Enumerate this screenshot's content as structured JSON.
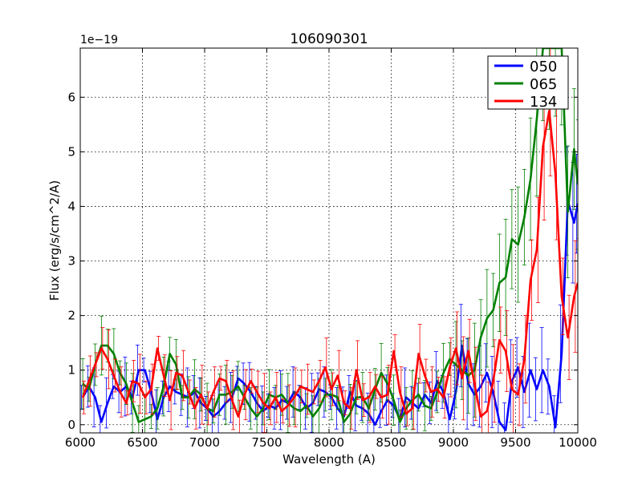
{
  "chart_data": {
    "type": "line",
    "title": "106090301",
    "xlabel": "Wavelength (A)",
    "ylabel": "Flux (erg/s/cm^2/A)",
    "offset_label": "1e−19",
    "xlim": [
      6000,
      10000
    ],
    "ylim": [
      -0.15,
      6.9
    ],
    "grid": true,
    "legend_position": "top-right",
    "x_ticks": [
      6000,
      6500,
      7000,
      7500,
      8000,
      8500,
      9000,
      9500,
      10000
    ],
    "x_tick_labels": [
      "6000",
      "6500",
      "7000",
      "7500",
      "8000",
      "8500",
      "9000",
      "9500",
      "10000"
    ],
    "y_ticks": [
      0,
      1,
      2,
      3,
      4,
      5,
      6
    ],
    "y_tick_labels": [
      "0",
      "1",
      "2",
      "3",
      "4",
      "5",
      "6"
    ],
    "series": [
      {
        "name": "050",
        "color": "#0000ff",
        "x": [
          6020,
          6070,
          6120,
          6170,
          6220,
          6270,
          6320,
          6370,
          6420,
          6470,
          6520,
          6570,
          6620,
          6670,
          6720,
          6770,
          6820,
          6870,
          6920,
          6970,
          7020,
          7070,
          7120,
          7170,
          7220,
          7270,
          7320,
          7370,
          7420,
          7470,
          7520,
          7570,
          7620,
          7670,
          7720,
          7770,
          7820,
          7870,
          7920,
          7970,
          8020,
          8070,
          8120,
          8170,
          8220,
          8270,
          8320,
          8370,
          8420,
          8470,
          8520,
          8570,
          8620,
          8670,
          8720,
          8770,
          8820,
          8870,
          8920,
          8970,
          9020,
          9070,
          9120,
          9170,
          9220,
          9270,
          9320,
          9370,
          9420,
          9470,
          9520,
          9570,
          9620,
          9670,
          9720,
          9770,
          9820,
          9870,
          9920,
          9970,
          10000
        ],
        "y": [
          0.5,
          0.7,
          0.5,
          0.05,
          0.4,
          0.7,
          0.6,
          0.7,
          0.5,
          1.0,
          1.0,
          0.6,
          0.1,
          0.5,
          0.7,
          0.6,
          0.55,
          0.5,
          0.6,
          0.4,
          0.3,
          0.15,
          0.25,
          0.4,
          0.5,
          0.85,
          0.75,
          0.6,
          0.4,
          0.25,
          0.35,
          0.3,
          0.45,
          0.4,
          0.6,
          0.5,
          0.3,
          0.4,
          0.65,
          0.6,
          0.5,
          0.3,
          0.15,
          0.6,
          0.35,
          0.3,
          0.2,
          0.0,
          0.25,
          0.45,
          0.35,
          0.1,
          0.5,
          0.4,
          0.3,
          0.55,
          0.4,
          0.8,
          0.6,
          0.1,
          0.6,
          1.45,
          0.75,
          0.55,
          0.7,
          0.95,
          0.6,
          0.05,
          -0.1,
          0.8,
          1.05,
          0.6,
          1.0,
          0.65,
          1.0,
          0.7,
          -0.05,
          1.3,
          4.1,
          3.7,
          4.05
        ]
      },
      {
        "name": "065",
        "color": "#008000",
        "x": [
          6020,
          6070,
          6120,
          6170,
          6220,
          6270,
          6320,
          6370,
          6420,
          6470,
          6520,
          6570,
          6620,
          6670,
          6720,
          6770,
          6820,
          6870,
          6920,
          6970,
          7020,
          7070,
          7120,
          7170,
          7220,
          7270,
          7320,
          7370,
          7420,
          7470,
          7520,
          7570,
          7620,
          7670,
          7720,
          7770,
          7820,
          7870,
          7920,
          7970,
          8020,
          8070,
          8120,
          8170,
          8220,
          8270,
          8320,
          8370,
          8420,
          8470,
          8520,
          8570,
          8620,
          8670,
          8720,
          8770,
          8820,
          8870,
          8920,
          8970,
          9020,
          9070,
          9120,
          9170,
          9220,
          9270,
          9320,
          9370,
          9420,
          9470,
          9520,
          9570,
          9620,
          9670,
          9720,
          9770,
          9820,
          9870,
          9920,
          9970,
          10000
        ],
        "y": [
          0.75,
          0.65,
          1.1,
          1.45,
          1.45,
          1.3,
          0.95,
          0.75,
          0.4,
          0.05,
          0.1,
          0.15,
          0.3,
          0.7,
          1.3,
          1.1,
          0.5,
          0.5,
          0.65,
          0.55,
          0.3,
          0.25,
          0.55,
          0.55,
          0.6,
          0.7,
          0.5,
          0.3,
          0.15,
          0.3,
          0.55,
          0.5,
          0.55,
          0.4,
          0.3,
          0.25,
          0.35,
          0.15,
          0.3,
          0.55,
          0.55,
          0.5,
          0.05,
          0.2,
          0.5,
          0.5,
          0.3,
          0.65,
          0.95,
          0.75,
          0.45,
          0.05,
          0.3,
          0.45,
          0.55,
          0.35,
          0.3,
          0.6,
          0.95,
          1.2,
          1.1,
          1.0,
          0.9,
          1.0,
          1.6,
          1.95,
          2.1,
          2.6,
          2.7,
          3.4,
          3.3,
          3.8,
          4.5,
          5.6,
          6.9,
          6.9,
          6.9,
          6.9,
          3.9,
          5.05,
          4.4
        ]
      },
      {
        "name": "134",
        "color": "#ff0000",
        "x": [
          6020,
          6070,
          6120,
          6170,
          6220,
          6270,
          6320,
          6370,
          6420,
          6470,
          6520,
          6570,
          6620,
          6670,
          6720,
          6770,
          6820,
          6870,
          6920,
          6970,
          7020,
          7070,
          7120,
          7170,
          7220,
          7270,
          7320,
          7370,
          7420,
          7470,
          7520,
          7570,
          7620,
          7670,
          7720,
          7770,
          7820,
          7870,
          7920,
          7970,
          8020,
          8070,
          8120,
          8170,
          8220,
          8270,
          8320,
          8370,
          8420,
          8470,
          8520,
          8570,
          8620,
          8670,
          8720,
          8770,
          8820,
          8870,
          8920,
          8970,
          9020,
          9070,
          9120,
          9170,
          9220,
          9270,
          9320,
          9370,
          9420,
          9470,
          9520,
          9570,
          9620,
          9670,
          9720,
          9770,
          9820,
          9870,
          9920,
          9970,
          10000
        ],
        "y": [
          0.5,
          0.8,
          1.1,
          1.4,
          1.2,
          0.9,
          0.6,
          0.4,
          0.8,
          0.75,
          0.5,
          0.65,
          1.4,
          0.9,
          0.45,
          0.95,
          0.9,
          0.6,
          0.3,
          0.55,
          0.3,
          0.6,
          0.85,
          0.8,
          0.45,
          0.15,
          0.55,
          0.8,
          0.6,
          0.4,
          0.3,
          0.5,
          0.25,
          0.35,
          0.5,
          0.7,
          0.65,
          0.6,
          0.8,
          1.05,
          0.65,
          0.9,
          0.4,
          0.3,
          1.0,
          0.45,
          0.5,
          0.7,
          0.5,
          0.55,
          1.35,
          0.6,
          0.2,
          0.3,
          1.3,
          0.9,
          0.6,
          0.65,
          0.5,
          1.05,
          1.4,
          0.85,
          1.35,
          0.75,
          0.15,
          0.25,
          0.8,
          1.55,
          1.35,
          0.65,
          0.55,
          1.2,
          2.65,
          3.2,
          5.1,
          5.75,
          4.6,
          2.35,
          1.6,
          2.35,
          2.6
        ]
      }
    ]
  }
}
